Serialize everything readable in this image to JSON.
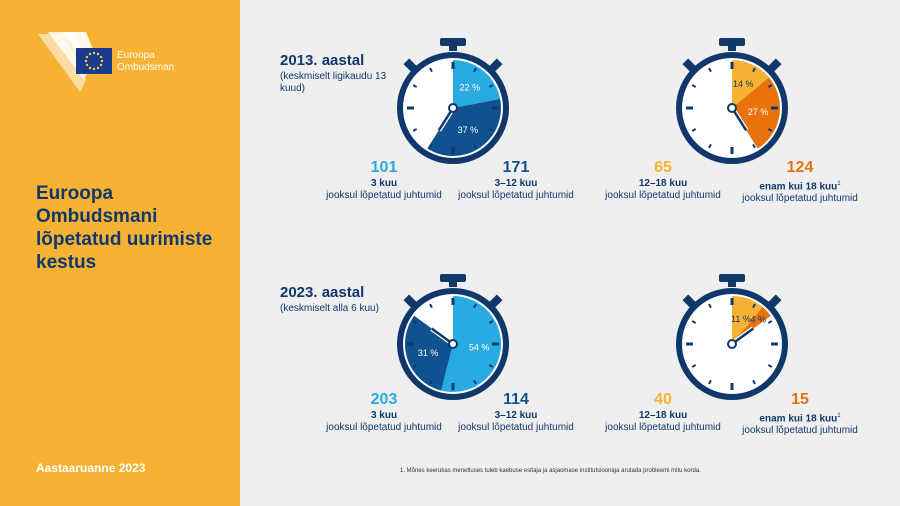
{
  "logo": {
    "line1": "Euroopa",
    "line2": "Ombudsman"
  },
  "sidebar": {
    "title": "Euroopa Ombudsmani lõpetatud uurimiste kestus",
    "footer": "Aastaaruanne 2023"
  },
  "colors": {
    "light_blue": "#29aae1",
    "dark_blue": "#10528f",
    "navy": "#10386b",
    "yellow": "#f7b234",
    "orange": "#e8720c"
  },
  "years": [
    {
      "title": "2013. aastal",
      "subtitle": "(keskmiselt ligikaudu 13 kuud)"
    },
    {
      "title": "2023. aastal",
      "subtitle": "(keskmiselt alla 6 kuu)"
    }
  ],
  "chart_data": [
    {
      "type": "pie",
      "year": "2013",
      "group": "short",
      "slices": [
        {
          "label": "3 kuu jooksul lõpetatud juhtumid",
          "count": 101,
          "percent": 22,
          "percent_label": "22 %",
          "color": "#29aae1"
        },
        {
          "label": "3–12 kuu jooksul lõpetatud juhtumid",
          "count": 171,
          "percent": 37,
          "percent_label": "37 %",
          "color": "#10528f"
        }
      ]
    },
    {
      "type": "pie",
      "year": "2013",
      "group": "long",
      "slices": [
        {
          "label": "12–18 kuu jooksul lõpetatud juhtumid",
          "count": 65,
          "percent": 14,
          "percent_label": "14 %",
          "color": "#f7b234"
        },
        {
          "label": "enam kui 18 kuu jooksul lõpetatud juhtumid",
          "count": 124,
          "percent": 27,
          "percent_label": "27 %",
          "color": "#e8720c"
        }
      ]
    },
    {
      "type": "pie",
      "year": "2023",
      "group": "short",
      "slices": [
        {
          "label": "3 kuu jooksul lõpetatud juhtumid",
          "count": 203,
          "percent": 54,
          "percent_label": "54 %",
          "color": "#29aae1"
        },
        {
          "label": "3–12 kuu jooksul lõpetatud juhtumid",
          "count": 114,
          "percent": 31,
          "percent_label": "31 %",
          "color": "#10528f"
        }
      ]
    },
    {
      "type": "pie",
      "year": "2023",
      "group": "long",
      "slices": [
        {
          "label": "12–18 kuu jooksul lõpetatud juhtumid",
          "count": 40,
          "percent": 11,
          "percent_label": "11 %",
          "color": "#f7b234"
        },
        {
          "label": "enam kui 18 kuu jooksul lõpetatud juhtumid",
          "count": 15,
          "percent": 4,
          "percent_label": "4 %",
          "color": "#e8720c"
        }
      ]
    }
  ],
  "stats": {
    "s2013_1": {
      "num": "101",
      "bold": "3 kuu",
      "rest": "jooksul lõpetatud juhtumid"
    },
    "s2013_2": {
      "num": "171",
      "bold": "3–12 kuu",
      "rest": "jooksul lõpetatud juhtumid"
    },
    "s2013_3": {
      "num": "65",
      "bold": "12–18 kuu",
      "rest": "jooksul lõpetatud juhtumid"
    },
    "s2013_4": {
      "num": "124",
      "bold": "enam kui 18 kuu",
      "rest": "jooksul lõpetatud juhtumid"
    },
    "s2023_1": {
      "num": "203",
      "bold": "3 kuu",
      "rest": "jooksul lõpetatud juhtumid"
    },
    "s2023_2": {
      "num": "114",
      "bold": "3–12 kuu",
      "rest": "jooksul lõpetatud juhtumid"
    },
    "s2023_3": {
      "num": "40",
      "bold": "12–18 kuu",
      "rest": "jooksul lõpetatud juhtumid"
    },
    "s2023_4": {
      "num": "15",
      "bold": "enam kui 18 kuu",
      "rest": "jooksul lõpetatud juhtumid"
    }
  },
  "footnote_marker": "1",
  "footnote": "1. Mõnes keerukas menetluses tuleb kaebuse esitaja ja asjaomase institutsiooniga arutada probleemi mitu korda."
}
